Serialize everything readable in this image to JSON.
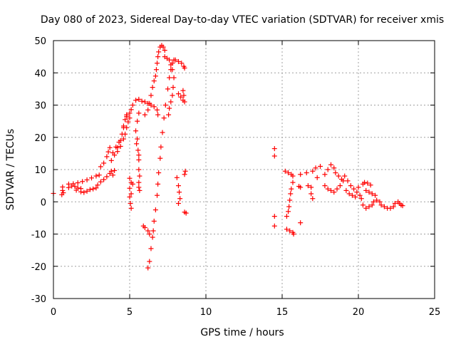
{
  "chart_data": {
    "type": "scatter",
    "title": "Day 080 of 2023, Sidereal Day-to-day VTEC variation (SDTVAR) for receiver xmis",
    "xlabel": "GPS time / hours",
    "ylabel": "SDTVAR / TECUs",
    "xlim": [
      0,
      25
    ],
    "ylim": [
      -30,
      50
    ],
    "xticks": [
      0,
      5,
      10,
      15,
      20,
      25
    ],
    "yticks": [
      -30,
      -20,
      -10,
      0,
      10,
      20,
      30,
      40,
      50
    ],
    "grid": true,
    "marker": "+",
    "color": "#ff0000",
    "series": [
      {
        "name": "xmis",
        "points": [
          [
            0.0,
            2.6
          ],
          [
            0.55,
            2.2
          ],
          [
            0.6,
            4.6
          ],
          [
            0.6,
            3.5
          ],
          [
            0.65,
            2.8
          ],
          [
            1.0,
            4.4
          ],
          [
            1.2,
            4.9
          ],
          [
            1.4,
            4.8
          ],
          [
            1.6,
            4.3
          ],
          [
            1.8,
            4.1
          ],
          [
            1.0,
            5.5
          ],
          [
            1.3,
            5.6
          ],
          [
            1.6,
            5.9
          ],
          [
            1.9,
            6.3
          ],
          [
            2.2,
            6.8
          ],
          [
            2.5,
            7.4
          ],
          [
            2.8,
            8.0
          ],
          [
            3.0,
            8.3
          ],
          [
            1.5,
            3.6
          ],
          [
            1.8,
            3.1
          ],
          [
            2.0,
            2.9
          ],
          [
            2.2,
            3.3
          ],
          [
            2.4,
            3.8
          ],
          [
            2.6,
            4.0
          ],
          [
            2.8,
            4.3
          ],
          [
            2.9,
            5.2
          ],
          [
            3.1,
            6.2
          ],
          [
            3.3,
            6.9
          ],
          [
            3.5,
            7.8
          ],
          [
            3.7,
            8.8
          ],
          [
            3.8,
            9.5
          ],
          [
            3.1,
            10.9
          ],
          [
            3.3,
            12.0
          ],
          [
            3.5,
            14.0
          ],
          [
            3.6,
            15.5
          ],
          [
            3.7,
            16.8
          ],
          [
            3.8,
            12.8
          ],
          [
            4.0,
            14.5
          ],
          [
            4.2,
            15.6
          ],
          [
            4.4,
            17.2
          ],
          [
            4.6,
            19.5
          ],
          [
            4.7,
            21.0
          ],
          [
            4.8,
            23.0
          ],
          [
            4.9,
            24.8
          ],
          [
            5.0,
            26.0
          ],
          [
            4.1,
            17.0
          ],
          [
            4.3,
            18.5
          ],
          [
            4.5,
            21.0
          ],
          [
            4.6,
            23.5
          ],
          [
            4.7,
            25.5
          ],
          [
            4.8,
            27.0
          ],
          [
            3.9,
            15.2
          ],
          [
            4.2,
            16.8
          ],
          [
            4.4,
            19.0
          ],
          [
            4.6,
            23.0
          ],
          [
            4.8,
            26.5
          ],
          [
            3.9,
            8.3
          ],
          [
            4.0,
            9.7
          ],
          [
            5.0,
            7.3
          ],
          [
            5.1,
            6.0
          ],
          [
            5.2,
            5.5
          ],
          [
            5.0,
            4.2
          ],
          [
            5.1,
            2.5
          ],
          [
            5.0,
            1.5
          ],
          [
            5.05,
            -0.5
          ],
          [
            5.1,
            -2.0
          ],
          [
            5.0,
            27.5
          ],
          [
            5.1,
            28.6
          ],
          [
            5.2,
            30.0
          ],
          [
            5.4,
            31.5
          ],
          [
            5.6,
            31.8
          ],
          [
            5.8,
            31.2
          ],
          [
            5.4,
            22.0
          ],
          [
            5.5,
            25.0
          ],
          [
            5.6,
            27.5
          ],
          [
            5.45,
            18.0
          ],
          [
            5.5,
            19.5
          ],
          [
            5.55,
            16.0
          ],
          [
            5.6,
            14.5
          ],
          [
            5.6,
            13.0
          ],
          [
            5.6,
            10.0
          ],
          [
            5.65,
            8.0
          ],
          [
            5.6,
            6.0
          ],
          [
            5.6,
            4.5
          ],
          [
            5.65,
            3.5
          ],
          [
            6.0,
            31.0
          ],
          [
            6.2,
            30.5
          ],
          [
            6.4,
            30.0
          ],
          [
            6.6,
            29.5
          ],
          [
            6.8,
            28.5
          ],
          [
            6.85,
            27.0
          ],
          [
            6.0,
            27.0
          ],
          [
            6.2,
            28.5
          ],
          [
            6.3,
            30.5
          ],
          [
            6.4,
            33.0
          ],
          [
            6.5,
            35.5
          ],
          [
            6.6,
            37.5
          ],
          [
            6.7,
            39.0
          ],
          [
            6.75,
            41.0
          ],
          [
            6.8,
            43.0
          ],
          [
            6.85,
            45.0
          ],
          [
            6.9,
            46.5
          ],
          [
            7.0,
            48.0
          ],
          [
            7.1,
            48.5
          ],
          [
            7.2,
            48.0
          ],
          [
            7.3,
            47.0
          ],
          [
            6.2,
            -20.5
          ],
          [
            6.3,
            -18.5
          ],
          [
            6.4,
            -14.5
          ],
          [
            6.5,
            -11.0
          ],
          [
            6.55,
            -9.0
          ],
          [
            6.6,
            -6.0
          ],
          [
            6.7,
            -2.5
          ],
          [
            6.8,
            2.0
          ],
          [
            6.85,
            5.5
          ],
          [
            6.9,
            9.0
          ],
          [
            7.0,
            13.5
          ],
          [
            7.05,
            17.0
          ],
          [
            7.15,
            21.5
          ],
          [
            7.25,
            26.0
          ],
          [
            7.35,
            30.0
          ],
          [
            7.5,
            35.0
          ],
          [
            7.6,
            38.5
          ],
          [
            7.7,
            41.0
          ],
          [
            7.8,
            43.0
          ],
          [
            7.9,
            44.0
          ],
          [
            8.0,
            44.0
          ],
          [
            7.3,
            45.0
          ],
          [
            7.45,
            44.5
          ],
          [
            7.6,
            44.0
          ],
          [
            7.7,
            42.5
          ],
          [
            7.8,
            41.0
          ],
          [
            7.9,
            38.5
          ],
          [
            7.85,
            35.5
          ],
          [
            7.8,
            33.0
          ],
          [
            7.7,
            31.0
          ],
          [
            7.6,
            29.0
          ],
          [
            7.55,
            27.0
          ],
          [
            5.9,
            -7.5
          ],
          [
            6.0,
            -8.0
          ],
          [
            6.2,
            -9.0
          ],
          [
            6.3,
            -10.0
          ],
          [
            8.1,
            7.5
          ],
          [
            8.2,
            5.0
          ],
          [
            8.25,
            3.0
          ],
          [
            8.3,
            1.0
          ],
          [
            8.2,
            -0.5
          ],
          [
            8.2,
            43.5
          ],
          [
            8.4,
            43.0
          ],
          [
            8.55,
            42.0
          ],
          [
            8.6,
            41.5
          ],
          [
            8.2,
            33.5
          ],
          [
            8.35,
            32.5
          ],
          [
            8.5,
            31.5
          ],
          [
            8.6,
            31.0
          ],
          [
            8.55,
            33.0
          ],
          [
            8.5,
            34.5
          ],
          [
            8.6,
            8.5
          ],
          [
            8.65,
            9.5
          ],
          [
            8.6,
            -3.2
          ],
          [
            8.7,
            -3.5
          ],
          [
            14.5,
            16.5
          ],
          [
            14.5,
            14.2
          ],
          [
            14.5,
            -4.5
          ],
          [
            14.5,
            -7.5
          ],
          [
            15.2,
            9.5
          ],
          [
            15.4,
            9.0
          ],
          [
            15.6,
            8.5
          ],
          [
            15.7,
            8.0
          ],
          [
            15.7,
            6.0
          ],
          [
            15.6,
            4.0
          ],
          [
            15.55,
            2.5
          ],
          [
            15.5,
            0.5
          ],
          [
            15.45,
            -1.5
          ],
          [
            15.4,
            -3.0
          ],
          [
            15.3,
            -4.5
          ],
          [
            15.3,
            -8.5
          ],
          [
            15.5,
            -9.0
          ],
          [
            15.7,
            -9.5
          ],
          [
            15.75,
            -10.0
          ],
          [
            16.2,
            8.5
          ],
          [
            16.1,
            4.8
          ],
          [
            16.2,
            4.5
          ],
          [
            16.2,
            -6.5
          ],
          [
            16.6,
            9.0
          ],
          [
            16.7,
            5.0
          ],
          [
            16.9,
            4.5
          ],
          [
            16.9,
            2.5
          ],
          [
            17.0,
            1.0
          ],
          [
            17.0,
            9.5
          ],
          [
            17.2,
            10.5
          ],
          [
            17.5,
            11.0
          ],
          [
            17.3,
            7.5
          ],
          [
            17.8,
            8.5
          ],
          [
            18.0,
            10.0
          ],
          [
            18.2,
            11.5
          ],
          [
            18.4,
            10.5
          ],
          [
            18.5,
            9.0
          ],
          [
            18.7,
            8.0
          ],
          [
            18.9,
            7.0
          ],
          [
            17.8,
            5.0
          ],
          [
            18.0,
            4.0
          ],
          [
            18.2,
            3.5
          ],
          [
            18.4,
            3.0
          ],
          [
            18.6,
            4.0
          ],
          [
            18.8,
            5.0
          ],
          [
            19.0,
            6.5
          ],
          [
            19.1,
            8.0
          ],
          [
            19.3,
            6.5
          ],
          [
            19.5,
            5.0
          ],
          [
            19.7,
            4.0
          ],
          [
            19.9,
            3.0
          ],
          [
            20.1,
            2.0
          ],
          [
            20.2,
            1.0
          ],
          [
            19.2,
            3.5
          ],
          [
            19.4,
            2.5
          ],
          [
            19.6,
            2.0
          ],
          [
            19.8,
            1.5
          ],
          [
            20.0,
            4.5
          ],
          [
            20.3,
            5.5
          ],
          [
            20.4,
            6.0
          ],
          [
            20.6,
            5.8
          ],
          [
            20.8,
            5.2
          ],
          [
            20.5,
            3.5
          ],
          [
            20.7,
            3.0
          ],
          [
            20.9,
            2.5
          ],
          [
            21.1,
            2.0
          ],
          [
            20.3,
            -1.0
          ],
          [
            20.5,
            -2.0
          ],
          [
            20.7,
            -1.5
          ],
          [
            20.9,
            -1.0
          ],
          [
            21.0,
            0.0
          ],
          [
            21.2,
            0.5
          ],
          [
            21.4,
            0.0
          ],
          [
            21.5,
            -1.0
          ],
          [
            21.7,
            -1.5
          ],
          [
            21.9,
            -2.0
          ],
          [
            22.1,
            -2.0
          ],
          [
            22.3,
            -1.5
          ],
          [
            22.4,
            -0.5
          ],
          [
            22.6,
            0.0
          ],
          [
            22.7,
            -0.5
          ],
          [
            22.8,
            -1.0
          ],
          [
            22.9,
            -1.2
          ]
        ]
      }
    ]
  }
}
